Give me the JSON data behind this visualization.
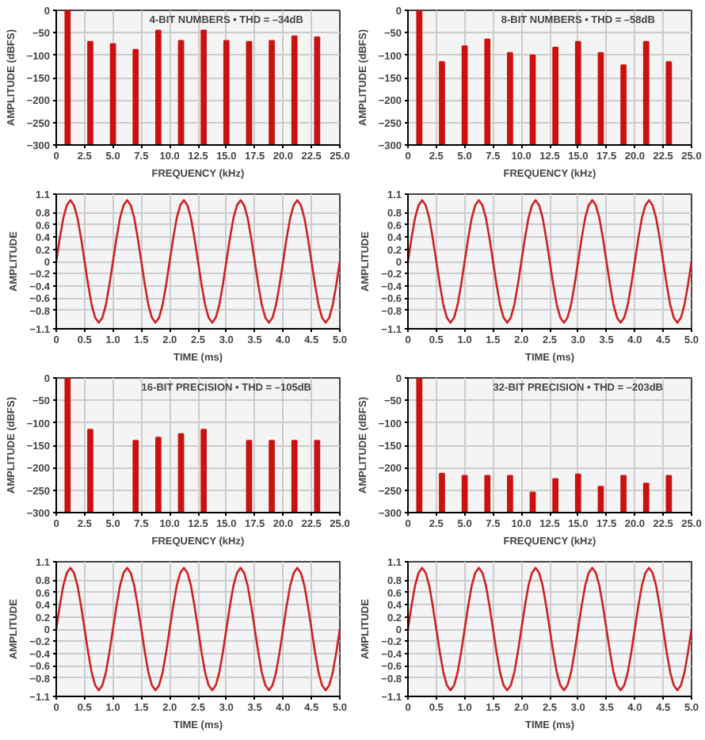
{
  "chart_data": [
    {
      "type": "bar",
      "title": "4-BIT NUMBERS • THD = –34dB",
      "xlabel": "FREQUENCY (kHz)",
      "ylabel": "AMPLITUDE (dBFS)",
      "x": [
        1,
        3,
        5,
        7,
        9,
        11,
        13,
        15,
        17,
        19,
        21,
        23
      ],
      "base": [
        -300,
        -300,
        -300,
        -300,
        -300,
        -300,
        -300,
        -300,
        -300,
        -300,
        -300,
        -300
      ],
      "values": [
        300,
        230,
        225,
        212,
        255,
        232,
        255,
        232,
        230,
        232,
        242,
        240
      ],
      "color": "#cc1111",
      "xlim": [
        0,
        25
      ],
      "ylim": [
        -300,
        0
      ],
      "xticks": [
        0,
        2.5,
        {
          "value": 5,
          "label": "5.0"
        },
        7.5,
        {
          "value": 10,
          "label": "10.0"
        },
        12.5,
        {
          "value": 15,
          "label": "15.0"
        },
        17.5,
        {
          "value": 20,
          "label": "20.0"
        },
        22.5,
        {
          "value": 25,
          "label": "25.0"
        }
      ],
      "yticks": [
        0,
        -50,
        -100,
        -150,
        -200,
        -250,
        -300
      ],
      "grid": true
    },
    {
      "type": "bar",
      "title": "8-BIT NUMBERS • THD = –58dB",
      "xlabel": "FREQUENCY (kHz)",
      "ylabel": "AMPLITUDE (dBFS)",
      "x": [
        1,
        3,
        5,
        7,
        9,
        11,
        13,
        15,
        17,
        19,
        21,
        23
      ],
      "base": [
        -300,
        -300,
        -300,
        -300,
        -300,
        -300,
        -300,
        -300,
        -300,
        -300,
        -300,
        -300
      ],
      "values": [
        300,
        185,
        220,
        235,
        205,
        200,
        217,
        230,
        205,
        178,
        230,
        185
      ],
      "color": "#cc1111",
      "xlim": [
        0,
        25
      ],
      "ylim": [
        -300,
        0
      ],
      "xticks": [
        0,
        2.5,
        {
          "value": 5,
          "label": "5.0"
        },
        7.5,
        {
          "value": 10,
          "label": "10.0"
        },
        12.5,
        {
          "value": 15,
          "label": "15.0"
        },
        17.5,
        {
          "value": 20,
          "label": "20.0"
        },
        22.5,
        {
          "value": 25,
          "label": "25.0"
        }
      ],
      "yticks": [
        0,
        -50,
        -100,
        -150,
        -200,
        -250,
        -300
      ],
      "grid": true
    },
    {
      "type": "line",
      "xlabel": "TIME (ms)",
      "ylabel": "AMPLITUDE",
      "x": [
        0,
        0.0625,
        0.125,
        0.1875,
        0.25,
        0.3125,
        0.375,
        0.4375,
        0.5,
        0.5625,
        0.625,
        0.6875,
        0.75,
        0.8125,
        0.875,
        0.9375,
        1,
        1.0625,
        1.125,
        1.1875,
        1.25,
        1.3125,
        1.375,
        1.4375,
        1.5,
        1.5625,
        1.625,
        1.6875,
        1.75,
        1.8125,
        1.875,
        1.9375,
        2,
        2.0625,
        2.125,
        2.1875,
        2.25,
        2.3125,
        2.375,
        2.4375,
        2.5,
        2.5625,
        2.625,
        2.6875,
        2.75,
        2.8125,
        2.875,
        2.9375,
        3,
        3.0625,
        3.125,
        3.1875,
        3.25,
        3.3125,
        3.375,
        3.4375,
        3.5,
        3.5625,
        3.625,
        3.6875,
        3.75,
        3.8125,
        3.875,
        3.9375,
        4,
        4.0625,
        4.125,
        4.1875,
        4.25,
        4.3125,
        4.375,
        4.4375,
        4.5,
        4.5625,
        4.625,
        4.6875,
        4.75,
        4.8125,
        4.875,
        4.9375,
        5
      ],
      "values": [
        0,
        0.38,
        0.71,
        0.92,
        1,
        0.92,
        0.71,
        0.38,
        0,
        -0.38,
        -0.71,
        -0.92,
        -1,
        -0.92,
        -0.71,
        -0.38,
        0,
        0.38,
        0.71,
        0.92,
        1,
        0.92,
        0.71,
        0.38,
        0,
        -0.38,
        -0.71,
        -0.92,
        -1,
        -0.92,
        -0.71,
        -0.38,
        0,
        0.38,
        0.71,
        0.92,
        1,
        0.92,
        0.71,
        0.38,
        0,
        -0.38,
        -0.71,
        -0.92,
        -1,
        -0.92,
        -0.71,
        -0.38,
        0,
        0.38,
        0.71,
        0.92,
        1,
        0.92,
        0.71,
        0.38,
        0,
        -0.38,
        -0.71,
        -0.92,
        -1,
        -0.92,
        -0.71,
        -0.38,
        0,
        0.38,
        0.71,
        0.92,
        1,
        0.92,
        0.71,
        0.38,
        0,
        -0.38,
        -0.71,
        -0.92,
        -1,
        -0.92,
        -0.71,
        -0.38,
        0
      ],
      "color": "#cc2222",
      "xlim": [
        0,
        5
      ],
      "ylim": [
        -1.1,
        1.1
      ],
      "xticks": [
        0,
        0.5,
        {
          "value": 1,
          "label": "1.0"
        },
        1.5,
        {
          "value": 2,
          "label": "2.0"
        },
        2.5,
        {
          "value": 3,
          "label": "3.0"
        },
        3.5,
        {
          "value": 4,
          "label": "4.0"
        },
        4.5,
        {
          "value": 5,
          "label": "5.0"
        }
      ],
      "yticks": [
        1.1,
        0.8,
        0.6,
        0.4,
        0.2,
        0,
        -0.2,
        -0.4,
        -0.6,
        -0.8,
        -1.1
      ],
      "grid": true
    },
    {
      "type": "line",
      "xlabel": "TIME (ms)",
      "ylabel": "AMPLITUDE",
      "x": [
        0,
        0.0625,
        0.125,
        0.1875,
        0.25,
        0.3125,
        0.375,
        0.4375,
        0.5,
        0.5625,
        0.625,
        0.6875,
        0.75,
        0.8125,
        0.875,
        0.9375,
        1,
        1.0625,
        1.125,
        1.1875,
        1.25,
        1.3125,
        1.375,
        1.4375,
        1.5,
        1.5625,
        1.625,
        1.6875,
        1.75,
        1.8125,
        1.875,
        1.9375,
        2,
        2.0625,
        2.125,
        2.1875,
        2.25,
        2.3125,
        2.375,
        2.4375,
        2.5,
        2.5625,
        2.625,
        2.6875,
        2.75,
        2.8125,
        2.875,
        2.9375,
        3,
        3.0625,
        3.125,
        3.1875,
        3.25,
        3.3125,
        3.375,
        3.4375,
        3.5,
        3.5625,
        3.625,
        3.6875,
        3.75,
        3.8125,
        3.875,
        3.9375,
        4,
        4.0625,
        4.125,
        4.1875,
        4.25,
        4.3125,
        4.375,
        4.4375,
        4.5,
        4.5625,
        4.625,
        4.6875,
        4.75,
        4.8125,
        4.875,
        4.9375,
        5
      ],
      "values": [
        0,
        0.38,
        0.71,
        0.92,
        1,
        0.92,
        0.71,
        0.38,
        0,
        -0.38,
        -0.71,
        -0.92,
        -1,
        -0.92,
        -0.71,
        -0.38,
        0,
        0.38,
        0.71,
        0.92,
        1,
        0.92,
        0.71,
        0.38,
        0,
        -0.38,
        -0.71,
        -0.92,
        -1,
        -0.92,
        -0.71,
        -0.38,
        0,
        0.38,
        0.71,
        0.92,
        1,
        0.92,
        0.71,
        0.38,
        0,
        -0.38,
        -0.71,
        -0.92,
        -1,
        -0.92,
        -0.71,
        -0.38,
        0,
        0.38,
        0.71,
        0.92,
        1,
        0.92,
        0.71,
        0.38,
        0,
        -0.38,
        -0.71,
        -0.92,
        -1,
        -0.92,
        -0.71,
        -0.38,
        0,
        0.38,
        0.71,
        0.92,
        1,
        0.92,
        0.71,
        0.38,
        0,
        -0.38,
        -0.71,
        -0.92,
        -1,
        -0.92,
        -0.71,
        -0.38,
        0
      ],
      "color": "#cc2222",
      "xlim": [
        0,
        5
      ],
      "ylim": [
        -1.1,
        1.1
      ],
      "xticks": [
        0,
        0.5,
        {
          "value": 1,
          "label": "1.0"
        },
        1.5,
        {
          "value": 2,
          "label": "2.0"
        },
        2.5,
        {
          "value": 3,
          "label": "3.0"
        },
        3.5,
        {
          "value": 4,
          "label": "4.0"
        },
        4.5,
        {
          "value": 5,
          "label": "5.0"
        }
      ],
      "yticks": [
        1.1,
        0.8,
        0.6,
        0.4,
        0.2,
        0,
        -0.2,
        -0.4,
        -0.6,
        -0.8,
        -1.1
      ],
      "grid": true
    },
    {
      "type": "bar",
      "title": "16-BIT PRECISION • THD = –105dB",
      "xlabel": "FREQUENCY (kHz)",
      "ylabel": "AMPLITUDE (dBFS)",
      "x": [
        1,
        3,
        5,
        7,
        9,
        11,
        13,
        15,
        17,
        19,
        21,
        23
      ],
      "base": [
        -300,
        -300,
        null,
        -300,
        -300,
        -300,
        -300,
        null,
        -300,
        -300,
        -300,
        -300
      ],
      "values": [
        300,
        185,
        null,
        160,
        167,
        175,
        185,
        null,
        160,
        160,
        160,
        160
      ],
      "color": "#cc1111",
      "xlim": [
        0,
        25
      ],
      "ylim": [
        -300,
        0
      ],
      "xticks": [
        0,
        2.5,
        {
          "value": 5,
          "label": "5.0"
        },
        7.5,
        {
          "value": 10,
          "label": "10.0"
        },
        12.5,
        {
          "value": 15,
          "label": "15.0"
        },
        17.5,
        {
          "value": 20,
          "label": "20.0"
        },
        22.5,
        {
          "value": 25,
          "label": "25.0"
        }
      ],
      "yticks": [
        0,
        -50,
        -100,
        -150,
        -200,
        -250,
        -300
      ],
      "grid": true
    },
    {
      "type": "bar",
      "title": "32-BIT PRECISION • THD = –203dB",
      "xlabel": "FREQUENCY (kHz)",
      "ylabel": "AMPLITUDE (dBFS)",
      "x": [
        1,
        3,
        5,
        7,
        9,
        11,
        13,
        15,
        17,
        19,
        21,
        23
      ],
      "base": [
        -300,
        -300,
        -300,
        -300,
        -300,
        -300,
        -300,
        -300,
        -300,
        -300,
        -300,
        -300
      ],
      "values": [
        300,
        87,
        82,
        82,
        82,
        45,
        75,
        85,
        58,
        82,
        65,
        82
      ],
      "color": "#cc1111",
      "xlim": [
        0,
        25
      ],
      "ylim": [
        -300,
        0
      ],
      "xticks": [
        0,
        2.5,
        {
          "value": 5,
          "label": "5.0"
        },
        7.5,
        {
          "value": 10,
          "label": "10.0"
        },
        12.5,
        {
          "value": 15,
          "label": "15.0"
        },
        17.5,
        {
          "value": 20,
          "label": "20.0"
        },
        22.5,
        {
          "value": 25,
          "label": "25.0"
        }
      ],
      "yticks": [
        0,
        -50,
        -100,
        -150,
        -200,
        -250,
        -300
      ],
      "grid": true
    },
    {
      "type": "line",
      "xlabel": "TIME (ms)",
      "ylabel": "AMPLITUDE",
      "x": [
        0,
        0.0625,
        0.125,
        0.1875,
        0.25,
        0.3125,
        0.375,
        0.4375,
        0.5,
        0.5625,
        0.625,
        0.6875,
        0.75,
        0.8125,
        0.875,
        0.9375,
        1,
        1.0625,
        1.125,
        1.1875,
        1.25,
        1.3125,
        1.375,
        1.4375,
        1.5,
        1.5625,
        1.625,
        1.6875,
        1.75,
        1.8125,
        1.875,
        1.9375,
        2,
        2.0625,
        2.125,
        2.1875,
        2.25,
        2.3125,
        2.375,
        2.4375,
        2.5,
        2.5625,
        2.625,
        2.6875,
        2.75,
        2.8125,
        2.875,
        2.9375,
        3,
        3.0625,
        3.125,
        3.1875,
        3.25,
        3.3125,
        3.375,
        3.4375,
        3.5,
        3.5625,
        3.625,
        3.6875,
        3.75,
        3.8125,
        3.875,
        3.9375,
        4,
        4.0625,
        4.125,
        4.1875,
        4.25,
        4.3125,
        4.375,
        4.4375,
        4.5,
        4.5625,
        4.625,
        4.6875,
        4.75,
        4.8125,
        4.875,
        4.9375,
        5
      ],
      "values": [
        0,
        0.38,
        0.71,
        0.92,
        1,
        0.92,
        0.71,
        0.38,
        0,
        -0.38,
        -0.71,
        -0.92,
        -1,
        -0.92,
        -0.71,
        -0.38,
        0,
        0.38,
        0.71,
        0.92,
        1,
        0.92,
        0.71,
        0.38,
        0,
        -0.38,
        -0.71,
        -0.92,
        -1,
        -0.92,
        -0.71,
        -0.38,
        0,
        0.38,
        0.71,
        0.92,
        1,
        0.92,
        0.71,
        0.38,
        0,
        -0.38,
        -0.71,
        -0.92,
        -1,
        -0.92,
        -0.71,
        -0.38,
        0,
        0.38,
        0.71,
        0.92,
        1,
        0.92,
        0.71,
        0.38,
        0,
        -0.38,
        -0.71,
        -0.92,
        -1,
        -0.92,
        -0.71,
        -0.38,
        0,
        0.38,
        0.71,
        0.92,
        1,
        0.92,
        0.71,
        0.38,
        0,
        -0.38,
        -0.71,
        -0.92,
        -1,
        -0.92,
        -0.71,
        -0.38,
        0
      ],
      "color": "#cc2222",
      "xlim": [
        0,
        5
      ],
      "ylim": [
        -1.1,
        1.1
      ],
      "xticks": [
        0,
        0.5,
        {
          "value": 1,
          "label": "1.0"
        },
        1.5,
        {
          "value": 2,
          "label": "2.0"
        },
        2.5,
        {
          "value": 3,
          "label": "3.0"
        },
        3.5,
        {
          "value": 4,
          "label": "4.0"
        },
        4.5,
        {
          "value": 5,
          "label": "5.0"
        }
      ],
      "yticks": [
        1.1,
        0.8,
        0.6,
        0.4,
        0.2,
        0,
        -0.2,
        -0.4,
        -0.6,
        -0.8,
        -1.1
      ],
      "grid": true
    },
    {
      "type": "line",
      "xlabel": "TIME (ms)",
      "ylabel": "AMPLITUDE",
      "x": [
        0,
        0.0625,
        0.125,
        0.1875,
        0.25,
        0.3125,
        0.375,
        0.4375,
        0.5,
        0.5625,
        0.625,
        0.6875,
        0.75,
        0.8125,
        0.875,
        0.9375,
        1,
        1.0625,
        1.125,
        1.1875,
        1.25,
        1.3125,
        1.375,
        1.4375,
        1.5,
        1.5625,
        1.625,
        1.6875,
        1.75,
        1.8125,
        1.875,
        1.9375,
        2,
        2.0625,
        2.125,
        2.1875,
        2.25,
        2.3125,
        2.375,
        2.4375,
        2.5,
        2.5625,
        2.625,
        2.6875,
        2.75,
        2.8125,
        2.875,
        2.9375,
        3,
        3.0625,
        3.125,
        3.1875,
        3.25,
        3.3125,
        3.375,
        3.4375,
        3.5,
        3.5625,
        3.625,
        3.6875,
        3.75,
        3.8125,
        3.875,
        3.9375,
        4,
        4.0625,
        4.125,
        4.1875,
        4.25,
        4.3125,
        4.375,
        4.4375,
        4.5,
        4.5625,
        4.625,
        4.6875,
        4.75,
        4.8125,
        4.875,
        4.9375,
        5
      ],
      "values": [
        0,
        0.38,
        0.71,
        0.92,
        1,
        0.92,
        0.71,
        0.38,
        0,
        -0.38,
        -0.71,
        -0.92,
        -1,
        -0.92,
        -0.71,
        -0.38,
        0,
        0.38,
        0.71,
        0.92,
        1,
        0.92,
        0.71,
        0.38,
        0,
        -0.38,
        -0.71,
        -0.92,
        -1,
        -0.92,
        -0.71,
        -0.38,
        0,
        0.38,
        0.71,
        0.92,
        1,
        0.92,
        0.71,
        0.38,
        0,
        -0.38,
        -0.71,
        -0.92,
        -1,
        -0.92,
        -0.71,
        -0.38,
        0,
        0.38,
        0.71,
        0.92,
        1,
        0.92,
        0.71,
        0.38,
        0,
        -0.38,
        -0.71,
        -0.92,
        -1,
        -0.92,
        -0.71,
        -0.38,
        0,
        0.38,
        0.71,
        0.92,
        1,
        0.92,
        0.71,
        0.38,
        0,
        -0.38,
        -0.71,
        -0.92,
        -1,
        -0.92,
        -0.71,
        -0.38,
        0
      ],
      "color": "#cc2222",
      "xlim": [
        0,
        5
      ],
      "ylim": [
        -1.1,
        1.1
      ],
      "xticks": [
        0,
        0.5,
        {
          "value": 1,
          "label": "1.0"
        },
        1.5,
        {
          "value": 2,
          "label": "2.0"
        },
        2.5,
        {
          "value": 3,
          "label": "3.0"
        },
        3.5,
        {
          "value": 4,
          "label": "4.0"
        },
        4.5,
        {
          "value": 5,
          "label": "5.0"
        }
      ],
      "yticks": [
        1.1,
        0.8,
        0.6,
        0.4,
        0.2,
        0,
        -0.2,
        -0.4,
        -0.6,
        -0.8,
        -1.1
      ],
      "grid": true
    }
  ]
}
